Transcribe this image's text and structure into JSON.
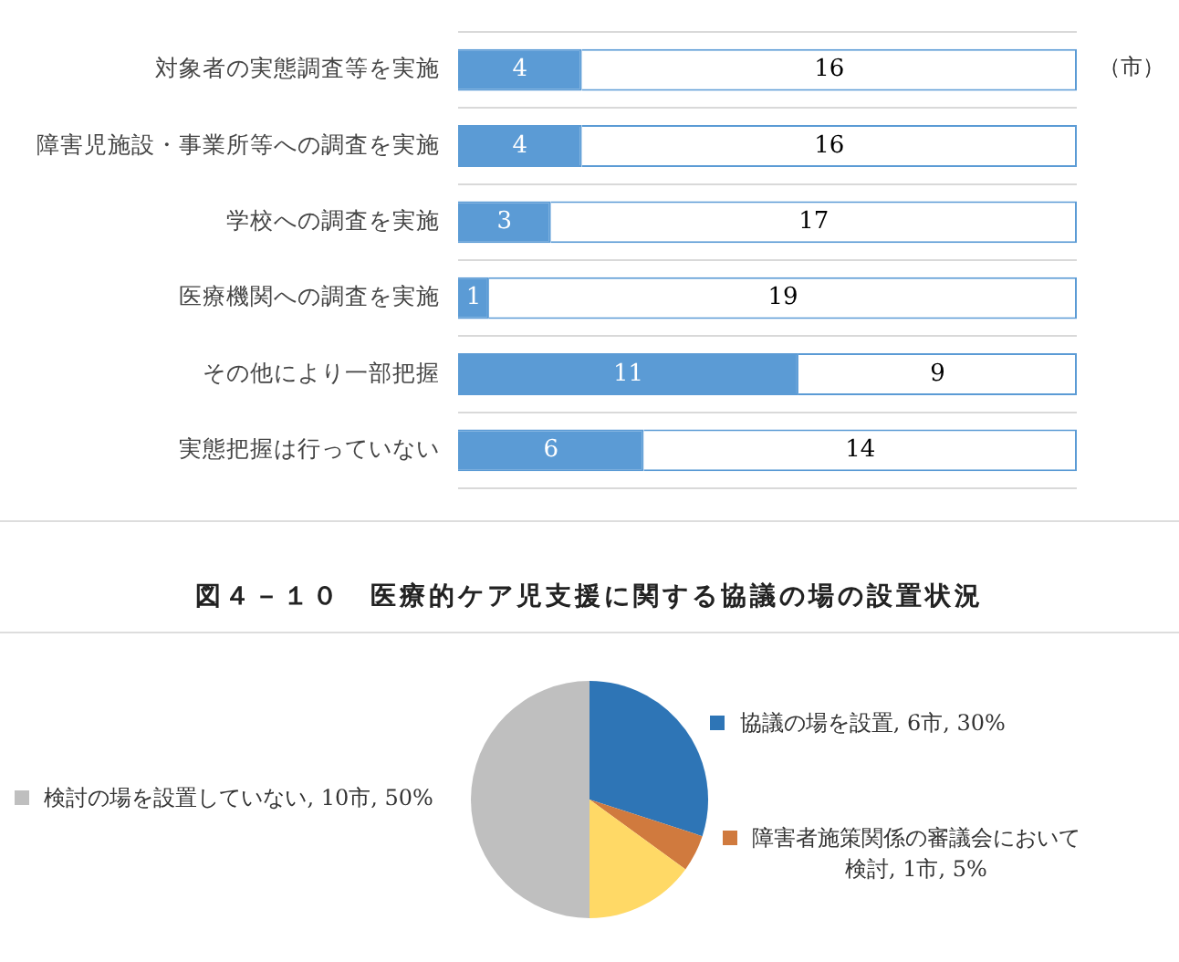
{
  "chart_data": [
    {
      "type": "bar",
      "orientation": "horizontal",
      "stacked": true,
      "data_labels": true,
      "grid": "y",
      "legend": false,
      "categories": [
        "対象者の実態調査等を実施",
        "障害児施設・事業所等への調査を実施",
        "学校への調査を実施",
        "医療機関への調査を実施",
        "その他により一部把握",
        "実態把握は行っていない"
      ],
      "series": [
        {
          "color": "#5b9bd5",
          "values": [
            4,
            4,
            3,
            1,
            11,
            6
          ]
        },
        {
          "color": "#ffffff",
          "values": [
            16,
            16,
            17,
            19,
            9,
            14
          ]
        }
      ],
      "annotations": [
        "（市）"
      ]
    },
    {
      "type": "pie",
      "title": "図４－１０　医療的ケア児支援に関する協議の場の設置状況",
      "legend": "top left",
      "categories": [
        "協議の場を設置",
        "障害者施策関係の審議会において検討",
        null,
        "検討の場を設置していない"
      ],
      "values": [
        30,
        5,
        15,
        50
      ],
      "colors": [
        "#2e75b6",
        "#d07a3e",
        "#ffd966",
        "#bfbfbf"
      ],
      "value_labels": [
        "6市, 30%",
        "1市, 5%",
        null,
        "10市, 50%"
      ]
    }
  ]
}
